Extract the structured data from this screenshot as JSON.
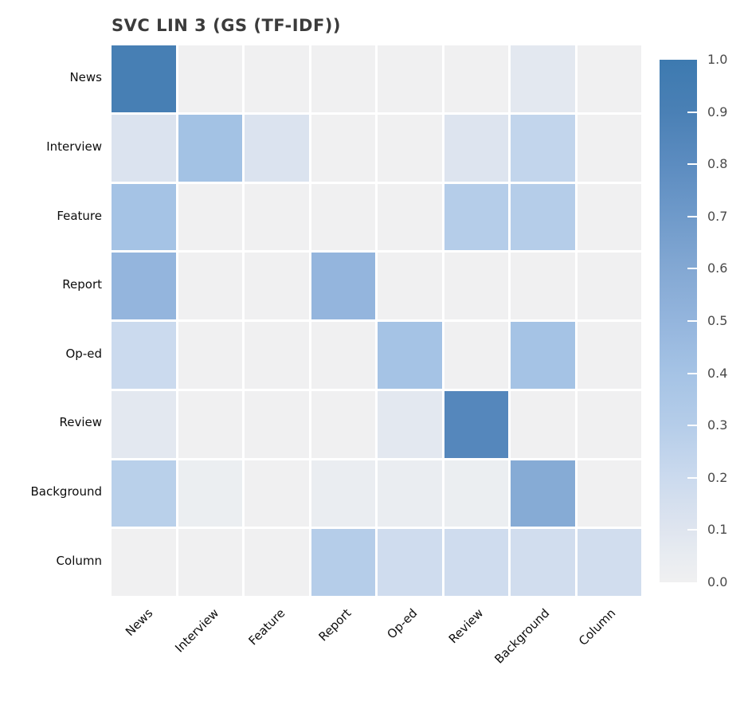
{
  "chart_data": {
    "type": "heatmap",
    "title": "SVC LIN 3 (GS (TF-IDF))",
    "categories": [
      "News",
      "Interview",
      "Feature",
      "Report",
      "Op-ed",
      "Review",
      "Background",
      "Column"
    ],
    "x_categories": [
      "News",
      "Interview",
      "Feature",
      "Report",
      "Op-ed",
      "Review",
      "Background",
      "Column"
    ],
    "matrix": [
      [
        0.92,
        0.0,
        0.0,
        0.0,
        0.0,
        0.0,
        0.08,
        0.0
      ],
      [
        0.12,
        0.41,
        0.12,
        0.0,
        0.0,
        0.11,
        0.24,
        0.0
      ],
      [
        0.4,
        0.0,
        0.0,
        0.0,
        0.0,
        0.3,
        0.3,
        0.0
      ],
      [
        0.5,
        0.0,
        0.0,
        0.5,
        0.0,
        0.0,
        0.0,
        0.0
      ],
      [
        0.2,
        0.0,
        0.0,
        0.0,
        0.4,
        0.0,
        0.4,
        0.0
      ],
      [
        0.08,
        0.0,
        0.0,
        0.0,
        0.08,
        0.84,
        0.0,
        0.0
      ],
      [
        0.28,
        0.03,
        0.0,
        0.04,
        0.04,
        0.03,
        0.58,
        0.0
      ],
      [
        0.0,
        0.0,
        0.0,
        0.3,
        0.18,
        0.18,
        0.17,
        0.17
      ]
    ],
    "value_range": [
      0.0,
      1.0
    ],
    "colorbar_ticks": [
      "1.0",
      "0.9",
      "0.8",
      "0.7",
      "0.6",
      "0.5",
      "0.4",
      "0.3",
      "0.2",
      "0.1",
      "0.0"
    ],
    "legend_position": "right",
    "grid": false,
    "colors": {
      "background": "#ffffff",
      "cell_gap": "#ffffff",
      "title_text": "#3b3b3b",
      "axis_label_text": "#0d0d0d",
      "colorbar_tick_text": "#4a4a4a",
      "cmap_stops": [
        [
          0.0,
          "#f0f0f1"
        ],
        [
          0.05,
          "#e8ecf1"
        ],
        [
          0.1,
          "#dfe5ef"
        ],
        [
          0.2,
          "#cbdaee"
        ],
        [
          0.3,
          "#b5cde9"
        ],
        [
          0.4,
          "#a5c3e5"
        ],
        [
          0.5,
          "#94b5dd"
        ],
        [
          0.6,
          "#83a8d3"
        ],
        [
          0.7,
          "#6f9aca"
        ],
        [
          0.8,
          "#5c8cc0"
        ],
        [
          0.9,
          "#4a80b5"
        ],
        [
          1.0,
          "#3d7ab0"
        ]
      ]
    }
  }
}
